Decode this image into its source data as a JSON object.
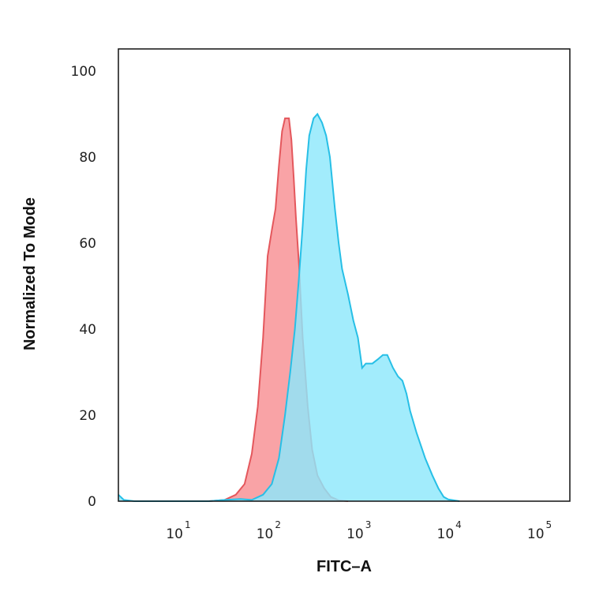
{
  "chart_data": {
    "type": "area",
    "xlabel": "FITC–A",
    "ylabel": "Normalized To Mode",
    "xscale": "log",
    "xlim": [
      2,
      200000
    ],
    "ylim": [
      0,
      100
    ],
    "y_ticks": [
      "0",
      "20",
      "40",
      "60",
      "80",
      "100"
    ],
    "x_ticks": [
      {
        "base": "10",
        "exp": "1",
        "value": 10
      },
      {
        "base": "10",
        "exp": "2",
        "value": 100
      },
      {
        "base": "10",
        "exp": "3",
        "value": 1000
      },
      {
        "base": "10",
        "exp": "4",
        "value": 10000
      },
      {
        "base": "10",
        "exp": "5",
        "value": 100000
      }
    ],
    "grid": false,
    "legend": "none",
    "series": [
      {
        "color_fill": "#f9a3a6",
        "color_line": "#e4575c",
        "points": [
          [
            20,
            0
          ],
          [
            30,
            0.3
          ],
          [
            40,
            1.5
          ],
          [
            50,
            4
          ],
          [
            60,
            11
          ],
          [
            70,
            22
          ],
          [
            80,
            38
          ],
          [
            90,
            57
          ],
          [
            100,
            63
          ],
          [
            110,
            68
          ],
          [
            120,
            78
          ],
          [
            130,
            86
          ],
          [
            140,
            89
          ],
          [
            155,
            89
          ],
          [
            165,
            84
          ],
          [
            175,
            75
          ],
          [
            185,
            66
          ],
          [
            200,
            55
          ],
          [
            220,
            38
          ],
          [
            250,
            22
          ],
          [
            280,
            12
          ],
          [
            320,
            6
          ],
          [
            380,
            3
          ],
          [
            450,
            1
          ],
          [
            550,
            0.2
          ],
          [
            700,
            0
          ]
        ]
      },
      {
        "color_fill": "#8de8fb",
        "color_line": "#27bfe6",
        "points": [
          [
            2,
            1.5
          ],
          [
            2.3,
            0.3
          ],
          [
            3,
            0
          ],
          [
            20,
            0
          ],
          [
            30,
            0.3
          ],
          [
            45,
            0.5
          ],
          [
            60,
            0.3
          ],
          [
            80,
            1.5
          ],
          [
            100,
            4
          ],
          [
            120,
            10
          ],
          [
            140,
            20
          ],
          [
            160,
            30
          ],
          [
            180,
            40
          ],
          [
            200,
            52
          ],
          [
            220,
            64
          ],
          [
            240,
            77
          ],
          [
            260,
            85
          ],
          [
            290,
            89
          ],
          [
            320,
            90
          ],
          [
            360,
            88
          ],
          [
            400,
            85
          ],
          [
            440,
            80
          ],
          [
            500,
            68
          ],
          [
            550,
            60
          ],
          [
            600,
            54
          ],
          [
            700,
            48
          ],
          [
            800,
            42
          ],
          [
            900,
            38
          ],
          [
            1000,
            31
          ],
          [
            1100,
            32
          ],
          [
            1300,
            32
          ],
          [
            1500,
            33
          ],
          [
            1700,
            34
          ],
          [
            1900,
            34
          ],
          [
            2200,
            31
          ],
          [
            2500,
            29
          ],
          [
            2800,
            28
          ],
          [
            3100,
            25
          ],
          [
            3400,
            21
          ],
          [
            4000,
            16
          ],
          [
            5000,
            10
          ],
          [
            6000,
            6
          ],
          [
            7000,
            3
          ],
          [
            8000,
            1
          ],
          [
            9000,
            0.4
          ],
          [
            12000,
            0
          ]
        ]
      }
    ]
  }
}
